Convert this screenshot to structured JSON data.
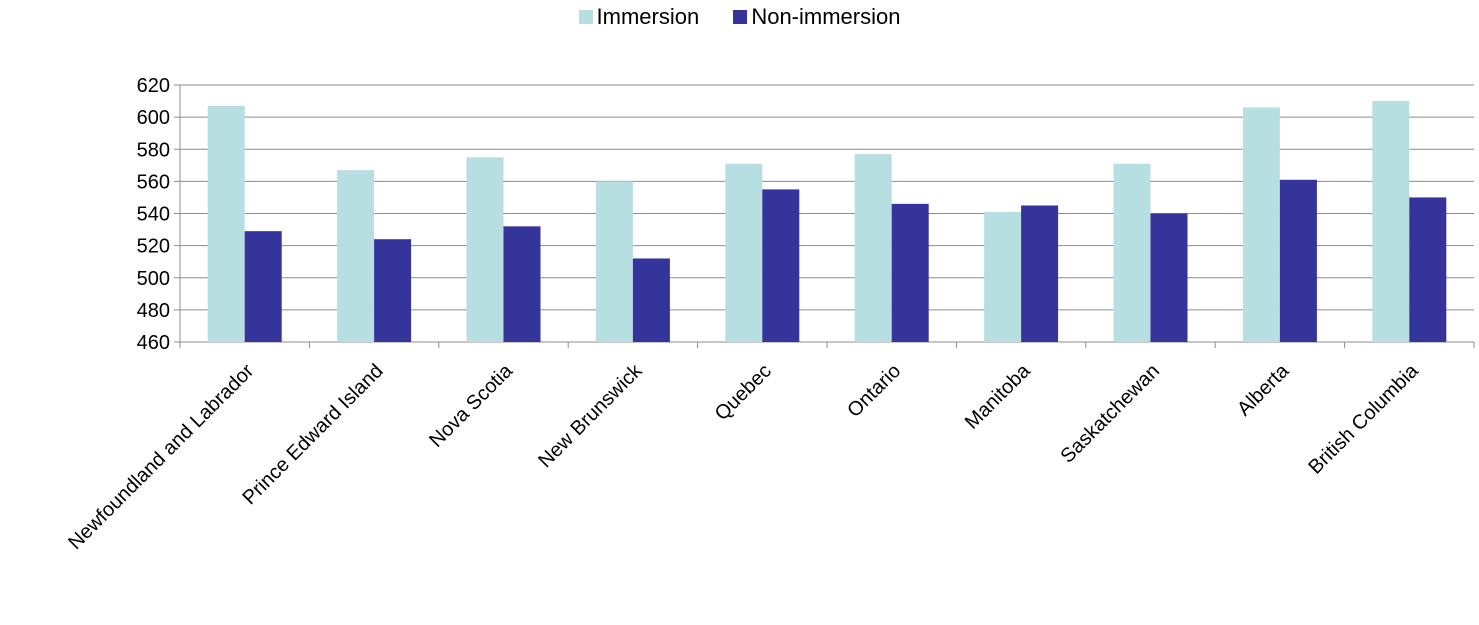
{
  "chart_data": {
    "type": "bar",
    "title": "",
    "xlabel": "",
    "ylabel": "",
    "ylim": [
      460,
      620
    ],
    "yticks": [
      460,
      480,
      500,
      520,
      540,
      560,
      580,
      600,
      620
    ],
    "grid": true,
    "legend_position": "top-center",
    "categories": [
      "Newfoundland and Labrador",
      "Prince Edward Island",
      "Nova Scotia",
      "New Brunswick",
      "Quebec",
      "Ontario",
      "Manitoba",
      "Saskatchewan",
      "Alberta",
      "British Columbia"
    ],
    "series": [
      {
        "name": "Immersion",
        "color": "#B7DEE1",
        "values": [
          607,
          567,
          575,
          560,
          571,
          577,
          541,
          571,
          606,
          610
        ]
      },
      {
        "name": "Non-immersion",
        "color": "#35349A",
        "values": [
          529,
          524,
          532,
          512,
          555,
          546,
          545,
          540,
          561,
          550
        ]
      }
    ]
  }
}
